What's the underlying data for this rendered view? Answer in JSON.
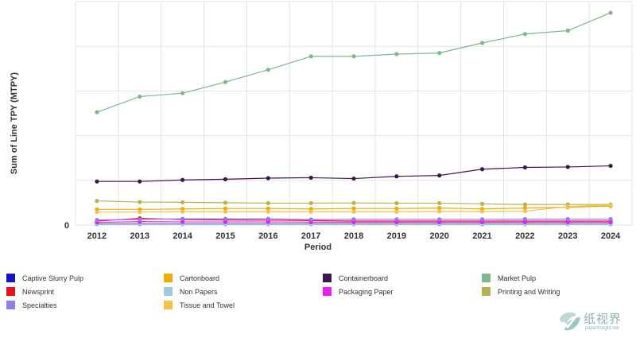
{
  "chart_data": {
    "type": "line",
    "title": "",
    "xlabel": "Period",
    "ylabel": "Sum of Line TPY (MTPY)",
    "x": [
      "2012",
      "2013",
      "2014",
      "2015",
      "2016",
      "2017",
      "2018",
      "2019",
      "2020",
      "2021",
      "2022",
      "2023",
      "2024"
    ],
    "yticks": [
      "0"
    ],
    "ylim": [
      0,
      100
    ],
    "grid": true,
    "legend_position": "bottom",
    "series": [
      {
        "name": "Captive Slurry Pulp",
        "color": "#1414c8",
        "values": [
          0.5,
          0.5,
          0.5,
          0.5,
          0.5,
          0.5,
          0.5,
          0.5,
          0.5,
          0.5,
          0.5,
          0.5,
          0.5
        ]
      },
      {
        "name": "Cartonboard",
        "color": "#f2a900",
        "values": [
          7,
          7,
          7.2,
          7.4,
          7.4,
          7.2,
          7.4,
          7.4,
          7.6,
          7.2,
          7.6,
          8,
          8.5
        ]
      },
      {
        "name": "Containerboard",
        "color": "#3f1550",
        "values": [
          19.5,
          19.5,
          20.2,
          20.5,
          21,
          21.2,
          20.8,
          21.8,
          22.2,
          25,
          25.8,
          26,
          26.5
        ]
      },
      {
        "name": "Market Pulp",
        "color": "#7fb88a",
        "values": [
          50.5,
          57.5,
          59,
          64,
          69.5,
          75.5,
          75.5,
          76.5,
          77,
          81.5,
          85.5,
          87,
          95
        ]
      },
      {
        "name": "Newsprint",
        "color": "#e8111f",
        "values": [
          1.8,
          3,
          2.5,
          2.3,
          2.2,
          2.0,
          1.8,
          1.8,
          1.8,
          1.8,
          1.8,
          1.8,
          1.8
        ]
      },
      {
        "name": "Non Papers",
        "color": "#9ecae1",
        "values": [
          0.3,
          0.3,
          0.3,
          0.3,
          0.3,
          0.3,
          0.3,
          0.3,
          0.3,
          0.3,
          0.3,
          0.3,
          0.3
        ]
      },
      {
        "name": "Packaging Paper",
        "color": "#ec1cf0",
        "values": [
          1.2,
          1.5,
          1.4,
          1.4,
          1.4,
          1.3,
          1.3,
          1.3,
          1.3,
          1.3,
          1.3,
          1.3,
          1.3
        ]
      },
      {
        "name": "Printing and Writing",
        "color": "#b5b34f",
        "values": [
          10.8,
          10.3,
          10.2,
          10.0,
          9.8,
          9.8,
          9.9,
          9.8,
          9.8,
          9.5,
          9.2,
          9.2,
          9.2
        ]
      },
      {
        "name": "Specialties",
        "color": "#8c7ff0",
        "values": [
          2.3,
          2.5,
          2.8,
          2.8,
          2.8,
          2.5,
          2.6,
          2.6,
          2.6,
          2.6,
          2.7,
          2.7,
          2.7
        ]
      },
      {
        "name": "Tissue and Towel",
        "color": "#f4c24a",
        "values": [
          5.8,
          5.9,
          6.0,
          6.0,
          6.0,
          6.0,
          6.0,
          6.0,
          6.1,
          6.1,
          6.2,
          8.3,
          9.0
        ]
      }
    ]
  },
  "watermark": {
    "text": "纸视界",
    "sub": "paperinsight.net"
  }
}
